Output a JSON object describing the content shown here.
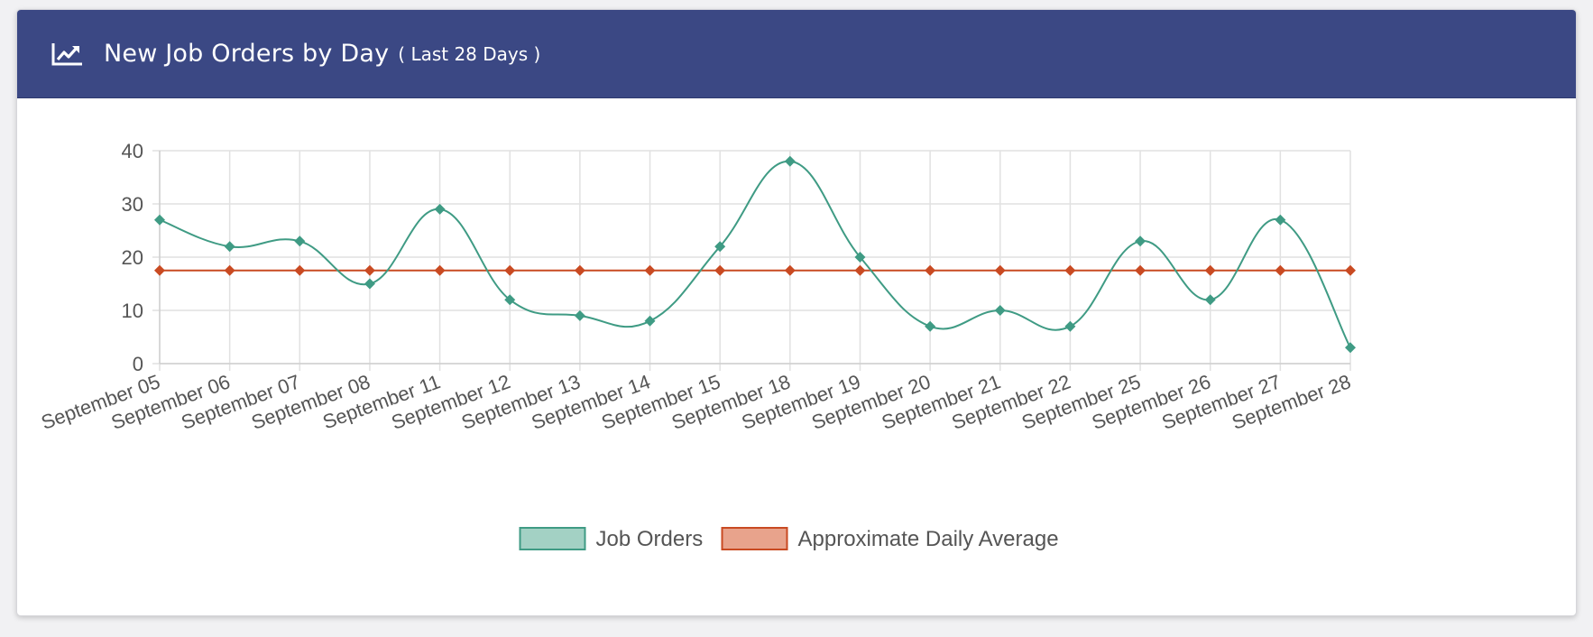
{
  "header": {
    "icon": "line-chart-icon",
    "title": "New Job Orders by Day",
    "subtitle": "( Last 28 Days )",
    "background": "#3b4884"
  },
  "chart_data": {
    "type": "line",
    "categories": [
      "September 05",
      "September 06",
      "September 07",
      "September 08",
      "September 11",
      "September 12",
      "September 13",
      "September 14",
      "September 15",
      "September 18",
      "September 19",
      "September 20",
      "September 21",
      "September 22",
      "September 25",
      "September 26",
      "September 27",
      "September 28"
    ],
    "series": [
      {
        "name": "Job Orders",
        "values": [
          27,
          22,
          23,
          15,
          29,
          12,
          9,
          8,
          22,
          38,
          20,
          7,
          10,
          7,
          23,
          12,
          27,
          3
        ],
        "color": "#3f9b84",
        "fill": "#a3d1c4",
        "smooth": true
      },
      {
        "name": "Approximate Daily Average",
        "values": [
          17.5,
          17.5,
          17.5,
          17.5,
          17.5,
          17.5,
          17.5,
          17.5,
          17.5,
          17.5,
          17.5,
          17.5,
          17.5,
          17.5,
          17.5,
          17.5,
          17.5,
          17.5
        ],
        "color": "#c94a22",
        "fill": "#e8a38c",
        "smooth": false
      }
    ],
    "ylim": [
      0,
      40
    ],
    "yticks": [
      0,
      10,
      20,
      30,
      40
    ],
    "grid": true,
    "legend_position": "bottom",
    "marker": "diamond"
  }
}
